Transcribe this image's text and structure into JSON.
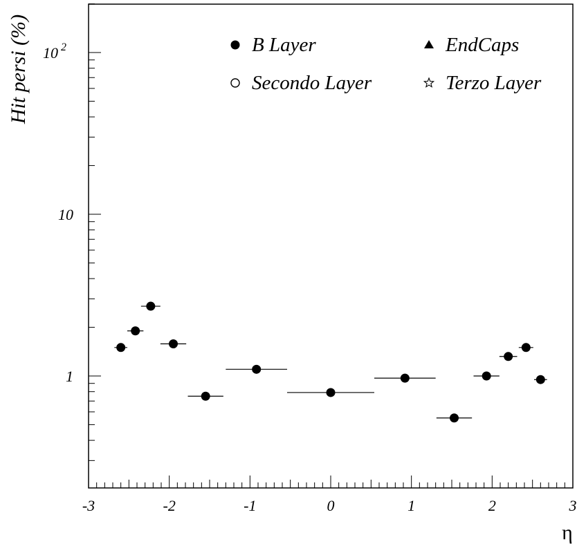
{
  "chart_data": {
    "type": "scatter",
    "ylabel": "Hit persi (%)",
    "xlabel": "η",
    "yscale": "log",
    "xlim": [
      -3,
      3
    ],
    "ylim": [
      0.3,
      250
    ],
    "x_tick_labels": [
      "-3",
      "-2",
      "-1",
      "0",
      "1",
      "2",
      "3"
    ],
    "x_tick_values": [
      -3,
      -2,
      -1,
      0,
      1,
      2,
      3
    ],
    "y_tick_labels": [
      {
        "value": 1,
        "base": "1",
        "exp": ""
      },
      {
        "value": 10,
        "base": "10",
        "exp": ""
      },
      {
        "value": 100,
        "base": "10",
        "exp": "2"
      }
    ],
    "legend_position": "top",
    "legend": [
      {
        "label": "B Layer",
        "marker": "filled-circle"
      },
      {
        "label": "EndCaps",
        "marker": "filled-triangle"
      },
      {
        "label": "Secondo Layer",
        "marker": "open-circle"
      },
      {
        "label": "Terzo Layer",
        "marker": "open-star"
      }
    ],
    "series": [
      {
        "name": "B Layer",
        "marker": "filled-circle",
        "points": [
          {
            "x": -2.6,
            "xerr": 0.08,
            "y": 1.5
          },
          {
            "x": -2.42,
            "xerr": 0.1,
            "y": 1.9
          },
          {
            "x": -2.23,
            "xerr": 0.12,
            "y": 2.7
          },
          {
            "x": -1.95,
            "xerr": 0.16,
            "y": 1.58
          },
          {
            "x": -1.55,
            "xerr": 0.22,
            "y": 0.75
          },
          {
            "x": -0.92,
            "xerr": 0.38,
            "y": 1.1
          },
          {
            "x": 0.0,
            "xerr": 0.54,
            "y": 0.79
          },
          {
            "x": 0.92,
            "xerr": 0.38,
            "y": 0.97
          },
          {
            "x": 1.53,
            "xerr": 0.22,
            "y": 0.55
          },
          {
            "x": 1.93,
            "xerr": 0.16,
            "y": 1.0
          },
          {
            "x": 2.2,
            "xerr": 0.11,
            "y": 1.32
          },
          {
            "x": 2.42,
            "xerr": 0.09,
            "y": 1.5
          },
          {
            "x": 2.6,
            "xerr": 0.08,
            "y": 0.95
          }
        ]
      }
    ]
  }
}
